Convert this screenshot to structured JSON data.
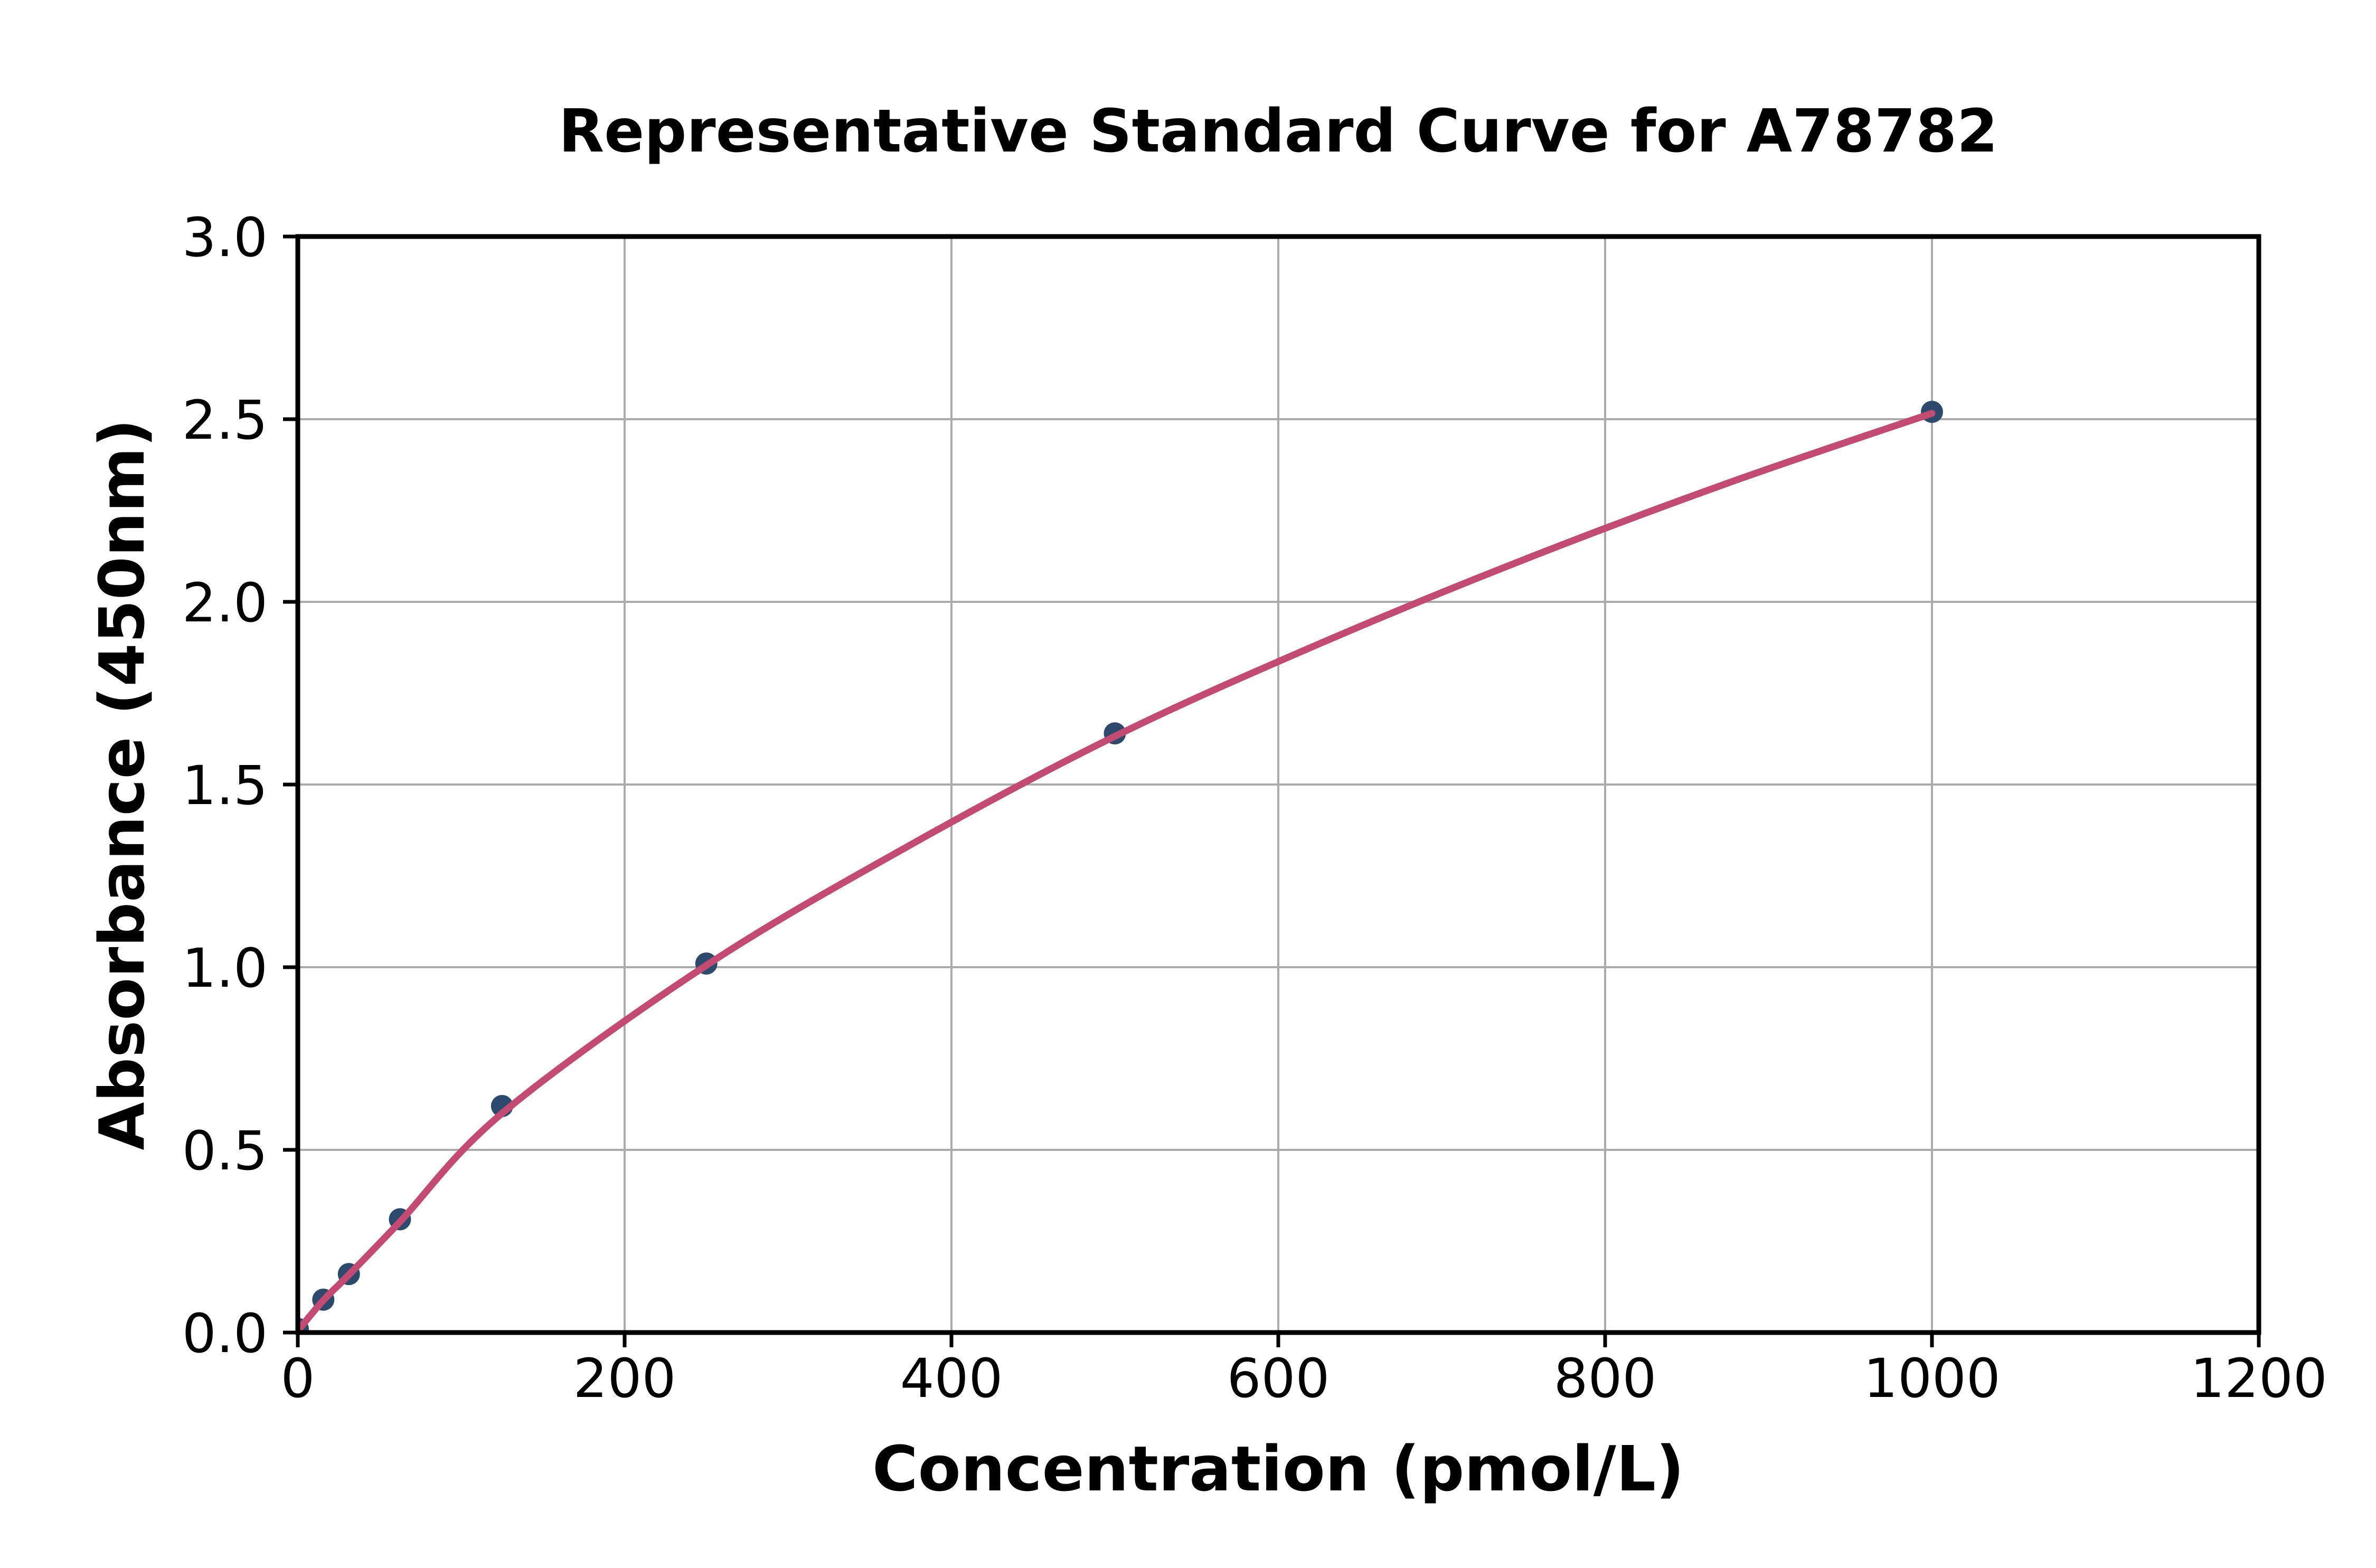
{
  "figure": {
    "background": "#FFFFFF"
  },
  "chart_data": {
    "type": "scatter",
    "title": "Representative Standard Curve for A78782",
    "xlabel": "Concentration (pmol/L)",
    "ylabel": "Absorbance (450nm)",
    "xlim": [
      0,
      1200
    ],
    "ylim": [
      0.0,
      3.0
    ],
    "xticks": [
      0,
      200,
      400,
      600,
      800,
      1000,
      1200
    ],
    "yticks": [
      0.0,
      0.5,
      1.0,
      1.5,
      2.0,
      2.5,
      3.0
    ],
    "ytick_labels": [
      "0.0",
      "0.5",
      "1.0",
      "1.5",
      "2.0",
      "2.5",
      "3.0"
    ],
    "grid": true,
    "legend_position": "none",
    "series": [
      {
        "name": "standard-points",
        "kind": "scatter",
        "x": [
          0,
          15.6,
          31.25,
          62.5,
          125,
          250,
          500,
          1000
        ],
        "y": [
          0.01,
          0.09,
          0.16,
          0.31,
          0.62,
          1.01,
          1.64,
          2.52
        ]
      },
      {
        "name": "fit-curve",
        "kind": "line",
        "points": [
          [
            0,
            0.005
          ],
          [
            15.6,
            0.088
          ],
          [
            31.25,
            0.158
          ],
          [
            62.5,
            0.303
          ],
          [
            125,
            0.6
          ],
          [
            250,
            1.005
          ],
          [
            375,
            1.335
          ],
          [
            500,
            1.632
          ],
          [
            625,
            1.885
          ],
          [
            750,
            2.115
          ],
          [
            875,
            2.325
          ],
          [
            1000,
            2.516
          ]
        ]
      }
    ],
    "colors": {
      "point": "#2D4A6C",
      "line": "#C34B73",
      "grid": "#ABABAB",
      "axis": "#000000",
      "text": "#000000",
      "background": "#FFFFFF"
    }
  }
}
